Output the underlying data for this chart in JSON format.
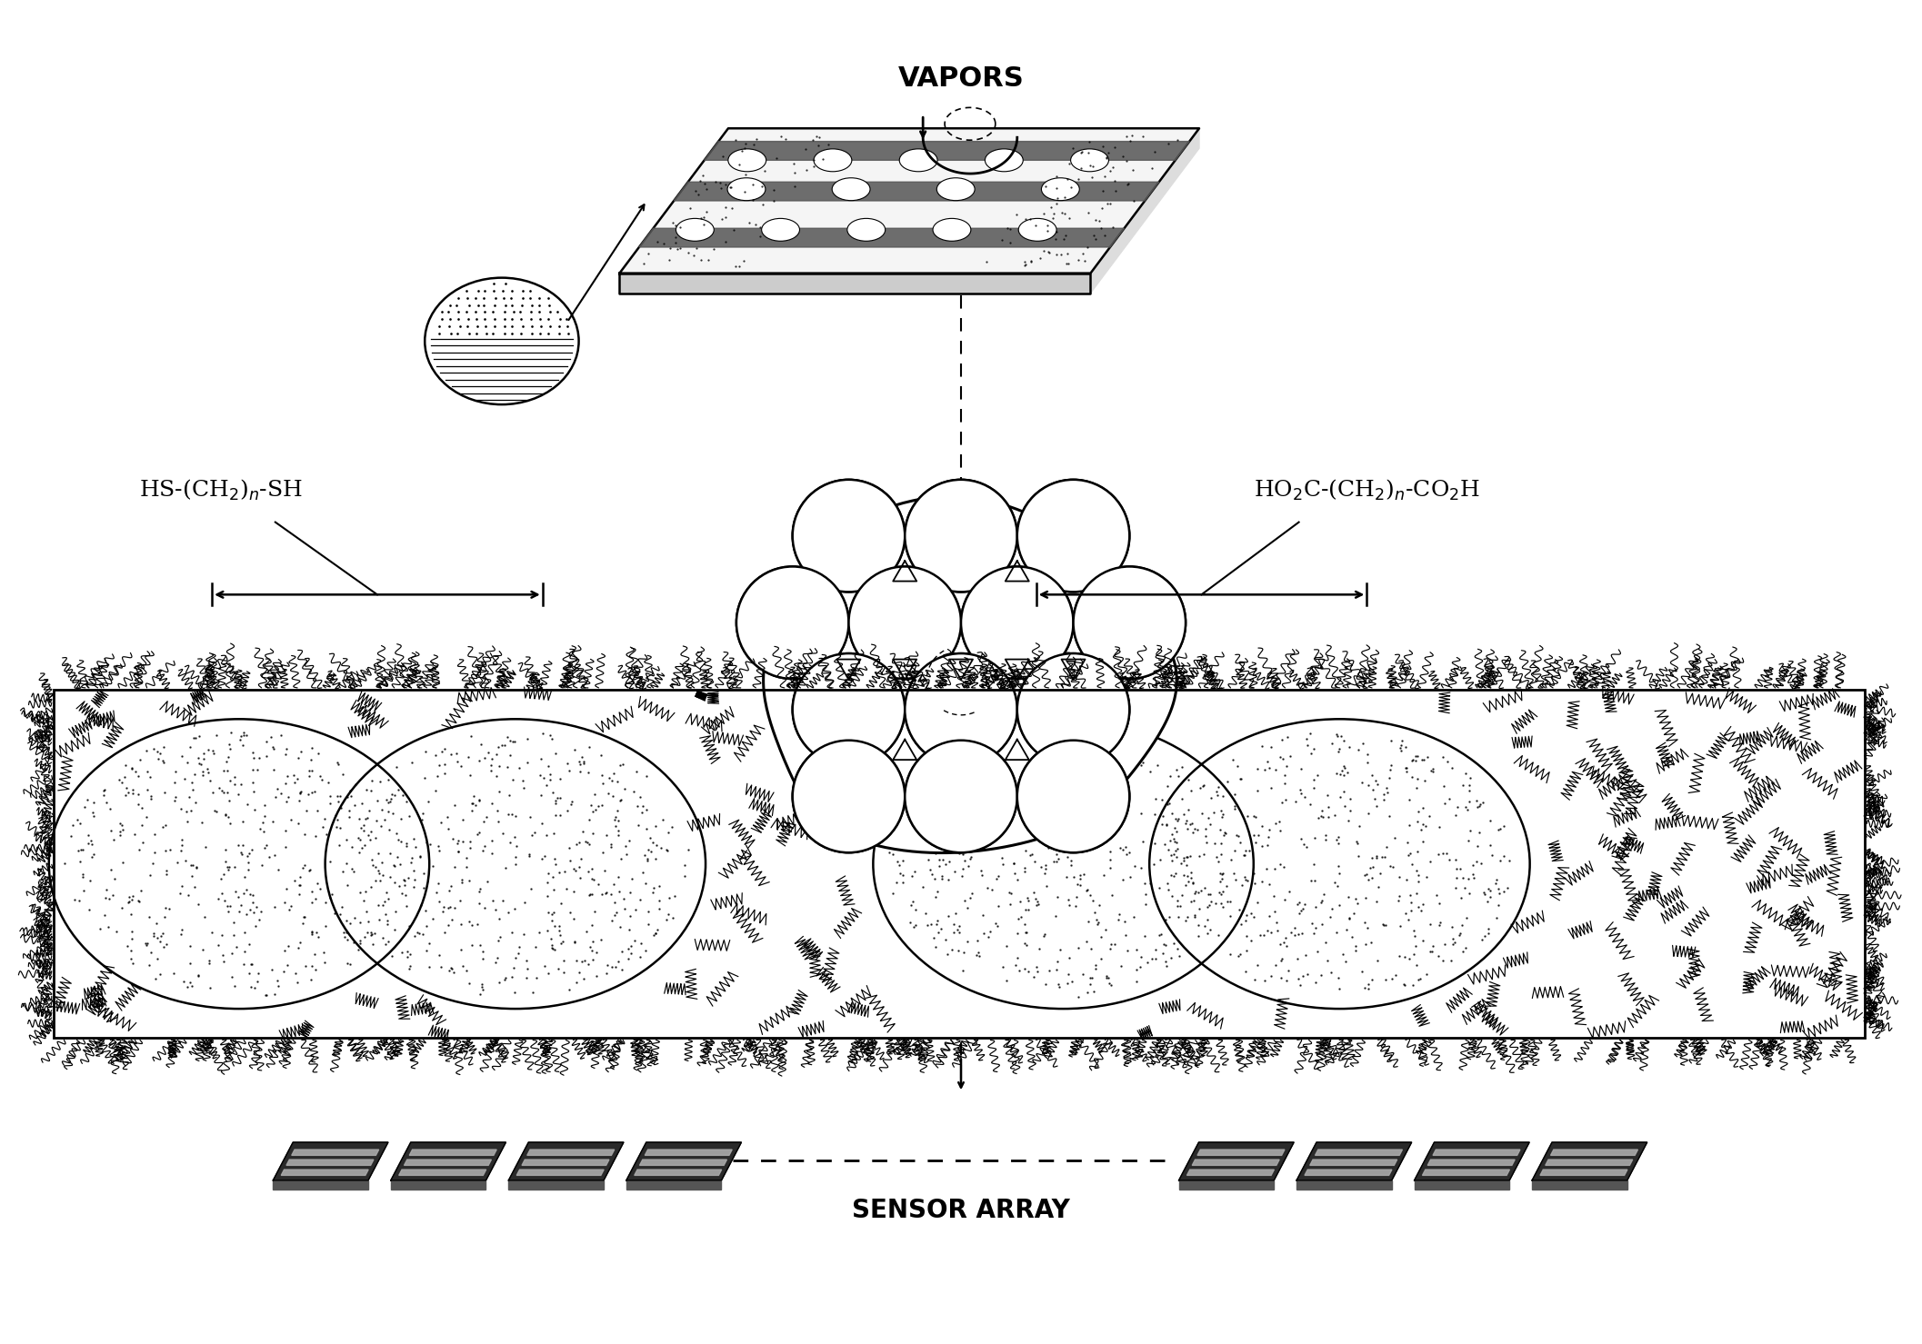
{
  "bg_color": "#ffffff",
  "line_color": "#000000",
  "label_vapors": "VAPORS",
  "label_sensor": "SENSOR ARRAY",
  "fig_width": 21.14,
  "fig_height": 14.79
}
